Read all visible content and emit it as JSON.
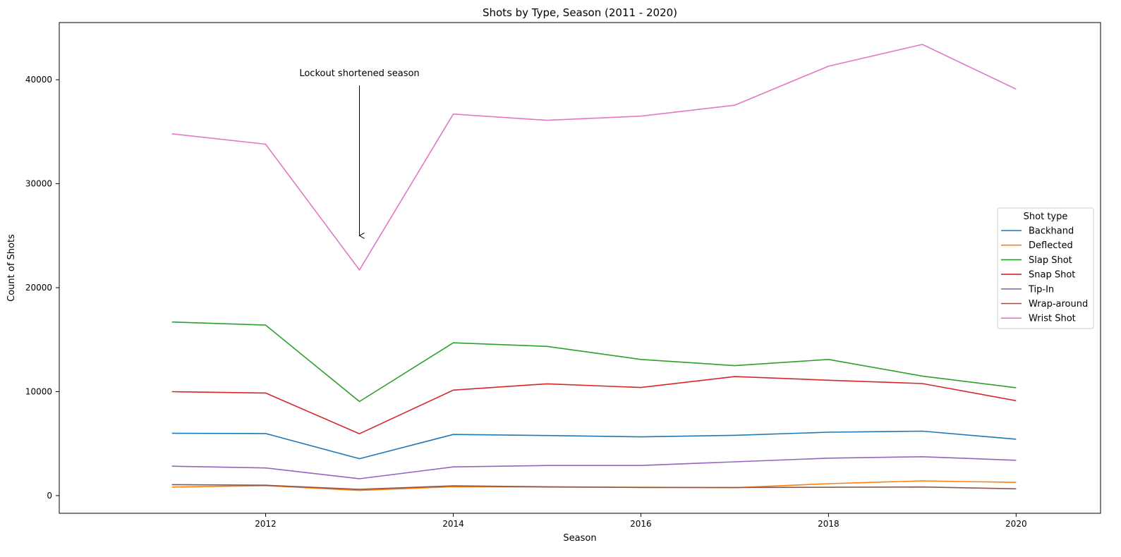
{
  "chart_data": {
    "type": "line",
    "title": "Shots by Type, Season (2011 - 2020)",
    "xlabel": "Season",
    "ylabel": "Count of Shots",
    "x": [
      2011,
      2012,
      2013,
      2014,
      2015,
      2016,
      2017,
      2018,
      2019,
      2020
    ],
    "xticks": [
      2012,
      2014,
      2016,
      2018,
      2020
    ],
    "yticks": [
      0,
      10000,
      20000,
      30000,
      40000
    ],
    "xlim": [
      2009.8,
      2020.9
    ],
    "ylim": [
      -1700,
      45500
    ],
    "grid": false,
    "legend": {
      "title": "Shot type",
      "placement": "center-right"
    },
    "series": [
      {
        "name": "Backhand",
        "color": "#1f77b4",
        "values": [
          6000,
          5970,
          3550,
          5880,
          5780,
          5650,
          5800,
          6100,
          6200,
          5430
        ]
      },
      {
        "name": "Deflected",
        "color": "#ff7f0e",
        "values": [
          820,
          960,
          500,
          860,
          820,
          800,
          760,
          1150,
          1420,
          1270
        ]
      },
      {
        "name": "Slap Shot",
        "color": "#2ca02c",
        "values": [
          16700,
          16400,
          9050,
          14700,
          14350,
          13100,
          12500,
          13100,
          11500,
          10380
        ]
      },
      {
        "name": "Snap Shot",
        "color": "#d62728",
        "values": [
          10000,
          9870,
          5950,
          10150,
          10750,
          10400,
          11450,
          11100,
          10780,
          9130
        ]
      },
      {
        "name": "Tip-In",
        "color": "#9467bd",
        "values": [
          2830,
          2660,
          1620,
          2760,
          2900,
          2900,
          3250,
          3600,
          3740,
          3400
        ]
      },
      {
        "name": "Wrap-around",
        "color": "#8c564b",
        "values": [
          1050,
          1000,
          600,
          940,
          850,
          780,
          780,
          800,
          830,
          650
        ]
      },
      {
        "name": "Wrist Shot",
        "color": "#e377c2",
        "values": [
          34800,
          33800,
          21700,
          36700,
          36100,
          36500,
          37550,
          41300,
          43400,
          39100
        ]
      }
    ],
    "annotations": [
      {
        "text": "Lockout shortened season",
        "text_xy": [
          2013,
          40000
        ],
        "arrow_to": [
          2013,
          25000
        ]
      }
    ]
  }
}
